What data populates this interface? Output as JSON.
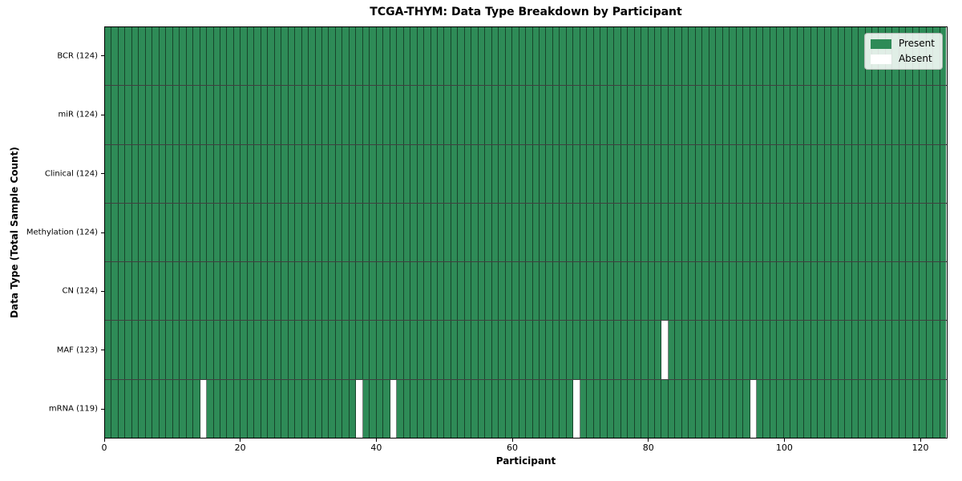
{
  "chart_data": {
    "type": "heatmap",
    "title": "TCGA-THYM: Data Type Breakdown by Participant",
    "xlabel": "Participant",
    "ylabel": "Data Type (Total Sample Count)",
    "n_participants": 124,
    "xlim": [
      0,
      124
    ],
    "x_ticks": [
      0,
      20,
      40,
      60,
      80,
      100,
      120
    ],
    "grid": false,
    "legend": {
      "position": "upper right",
      "entries": [
        {
          "label": "Present",
          "color": "#2E8B57"
        },
        {
          "label": "Absent",
          "color": "#FFFFFF"
        }
      ]
    },
    "colors": {
      "present": "#2E8B57",
      "absent": "#FFFFFF",
      "cell_border": "rgba(0,0,0,0.50)",
      "row_border": "rgba(0,0,0,0.75)",
      "spine": "#000000"
    },
    "rows": [
      {
        "data_type": "BCR",
        "label": "BCR (124)",
        "present_count": 124,
        "absent_participants": []
      },
      {
        "data_type": "miR",
        "label": "miR (124)",
        "present_count": 124,
        "absent_participants": []
      },
      {
        "data_type": "Clinical",
        "label": "Clinical (124)",
        "present_count": 124,
        "absent_participants": []
      },
      {
        "data_type": "Methylation",
        "label": "Methylation (124)",
        "present_count": 124,
        "absent_participants": []
      },
      {
        "data_type": "CN",
        "label": "CN (124)",
        "present_count": 124,
        "absent_participants": []
      },
      {
        "data_type": "MAF",
        "label": "MAF (123)",
        "present_count": 123,
        "absent_participants": [
          82
        ]
      },
      {
        "data_type": "mRNA",
        "label": "mRNA (119)",
        "present_count": 119,
        "absent_participants": [
          14,
          37,
          42,
          69,
          95
        ]
      }
    ]
  }
}
